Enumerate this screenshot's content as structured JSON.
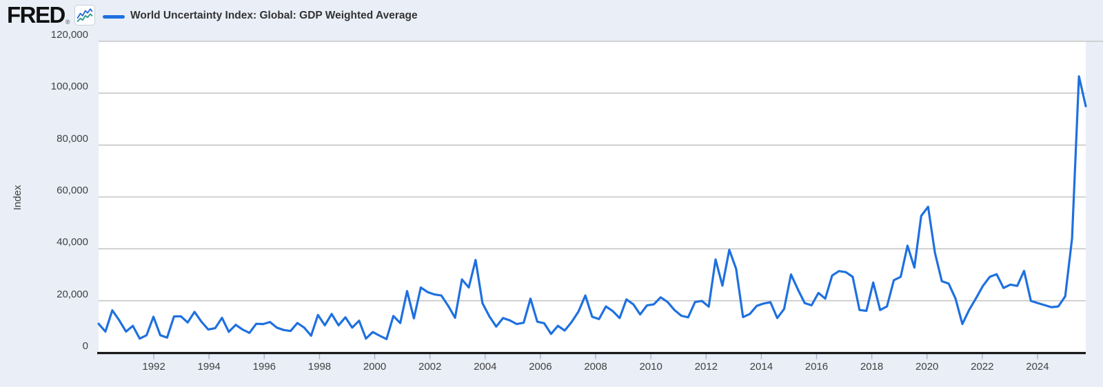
{
  "header": {
    "logo_text": "FRED",
    "registered_mark": "®",
    "legend_label": "World Uncertainty Index: Global: GDP Weighted Average"
  },
  "y_axis": {
    "title": "Index",
    "tick_labels": [
      "0",
      "20,000",
      "40,000",
      "60,000",
      "80,000",
      "100,000",
      "120,000"
    ],
    "tick_values": [
      0,
      20000,
      40000,
      60000,
      80000,
      100000,
      120000
    ]
  },
  "x_axis": {
    "tick_labels": [
      "1992",
      "1994",
      "1996",
      "1998",
      "2000",
      "2002",
      "2004",
      "2006",
      "2008",
      "2010",
      "2012",
      "2014",
      "2016",
      "2018",
      "2020",
      "2022",
      "2024"
    ],
    "tick_years": [
      1992,
      1994,
      1996,
      1998,
      2000,
      2002,
      2004,
      2006,
      2008,
      2010,
      2012,
      2014,
      2016,
      2018,
      2020,
      2022,
      2024
    ]
  },
  "colors": {
    "page_background": "#e9eef7",
    "plot_background": "#ffffff",
    "gridline": "#c6c6c6",
    "axis_line": "#111111",
    "tick_mark": "#aab4c8",
    "label_text": "#424242",
    "legend_text": "#333333",
    "series_line": "#1e70df",
    "logo_icon_blue": "#2b6bd8",
    "logo_icon_teal": "#2a9d8f"
  },
  "chart_data": {
    "type": "line",
    "title": "World Uncertainty Index: Global: GDP Weighted Average",
    "ylabel": "Index",
    "ylim": [
      0,
      120000
    ],
    "grid": "horizontal",
    "legend_position": "top-left",
    "x_start_label": "1990 Q1",
    "x_step": "quarterly",
    "x_tick_years": [
      1992,
      1994,
      1996,
      1998,
      2000,
      2002,
      2004,
      2006,
      2008,
      2010,
      2012,
      2014,
      2016,
      2018,
      2020,
      2022,
      2024
    ],
    "y_ticks": [
      0,
      20000,
      40000,
      60000,
      80000,
      100000,
      120000
    ],
    "series": [
      {
        "name": "World Uncertainty Index: Global: GDP Weighted Average",
        "color": "#1e70df",
        "values": [
          11100,
          8100,
          16300,
          12500,
          8100,
          10300,
          5400,
          6700,
          13800,
          6700,
          5800,
          13900,
          14000,
          11600,
          15700,
          11900,
          8900,
          9400,
          13400,
          8000,
          10700,
          8900,
          7600,
          11100,
          11000,
          11800,
          9600,
          8700,
          8300,
          11400,
          9600,
          6500,
          14500,
          10500,
          14900,
          10500,
          13600,
          9600,
          12300,
          5400,
          7900,
          6500,
          5200,
          14100,
          11400,
          23700,
          13200,
          25100,
          23300,
          22400,
          22000,
          18000,
          13400,
          28200,
          25100,
          35700,
          19000,
          14000,
          10000,
          13300,
          12400,
          11000,
          11500,
          20800,
          11900,
          11300,
          7200,
          10300,
          8500,
          11800,
          15800,
          22000,
          13800,
          12900,
          17800,
          16000,
          13300,
          20500,
          18600,
          14700,
          18200,
          18600,
          21300,
          19500,
          16400,
          14200,
          13600,
          19500,
          19900,
          17700,
          35900,
          25800,
          39600,
          32300,
          13700,
          14900,
          18000,
          18900,
          19400,
          13300,
          16800,
          30100,
          24400,
          19100,
          18200,
          23000,
          20800,
          29700,
          31400,
          31000,
          29200,
          16400,
          16100,
          27000,
          16400,
          17800,
          27900,
          29200,
          41200,
          32800,
          52700,
          56200,
          38500,
          27500,
          26600,
          20800,
          11000,
          16500,
          21000,
          25700,
          29200,
          30200,
          24900,
          26200,
          25700,
          31500,
          19900,
          19100,
          18300,
          17500,
          17800,
          21700,
          44000,
          106500,
          95000
        ]
      }
    ]
  }
}
